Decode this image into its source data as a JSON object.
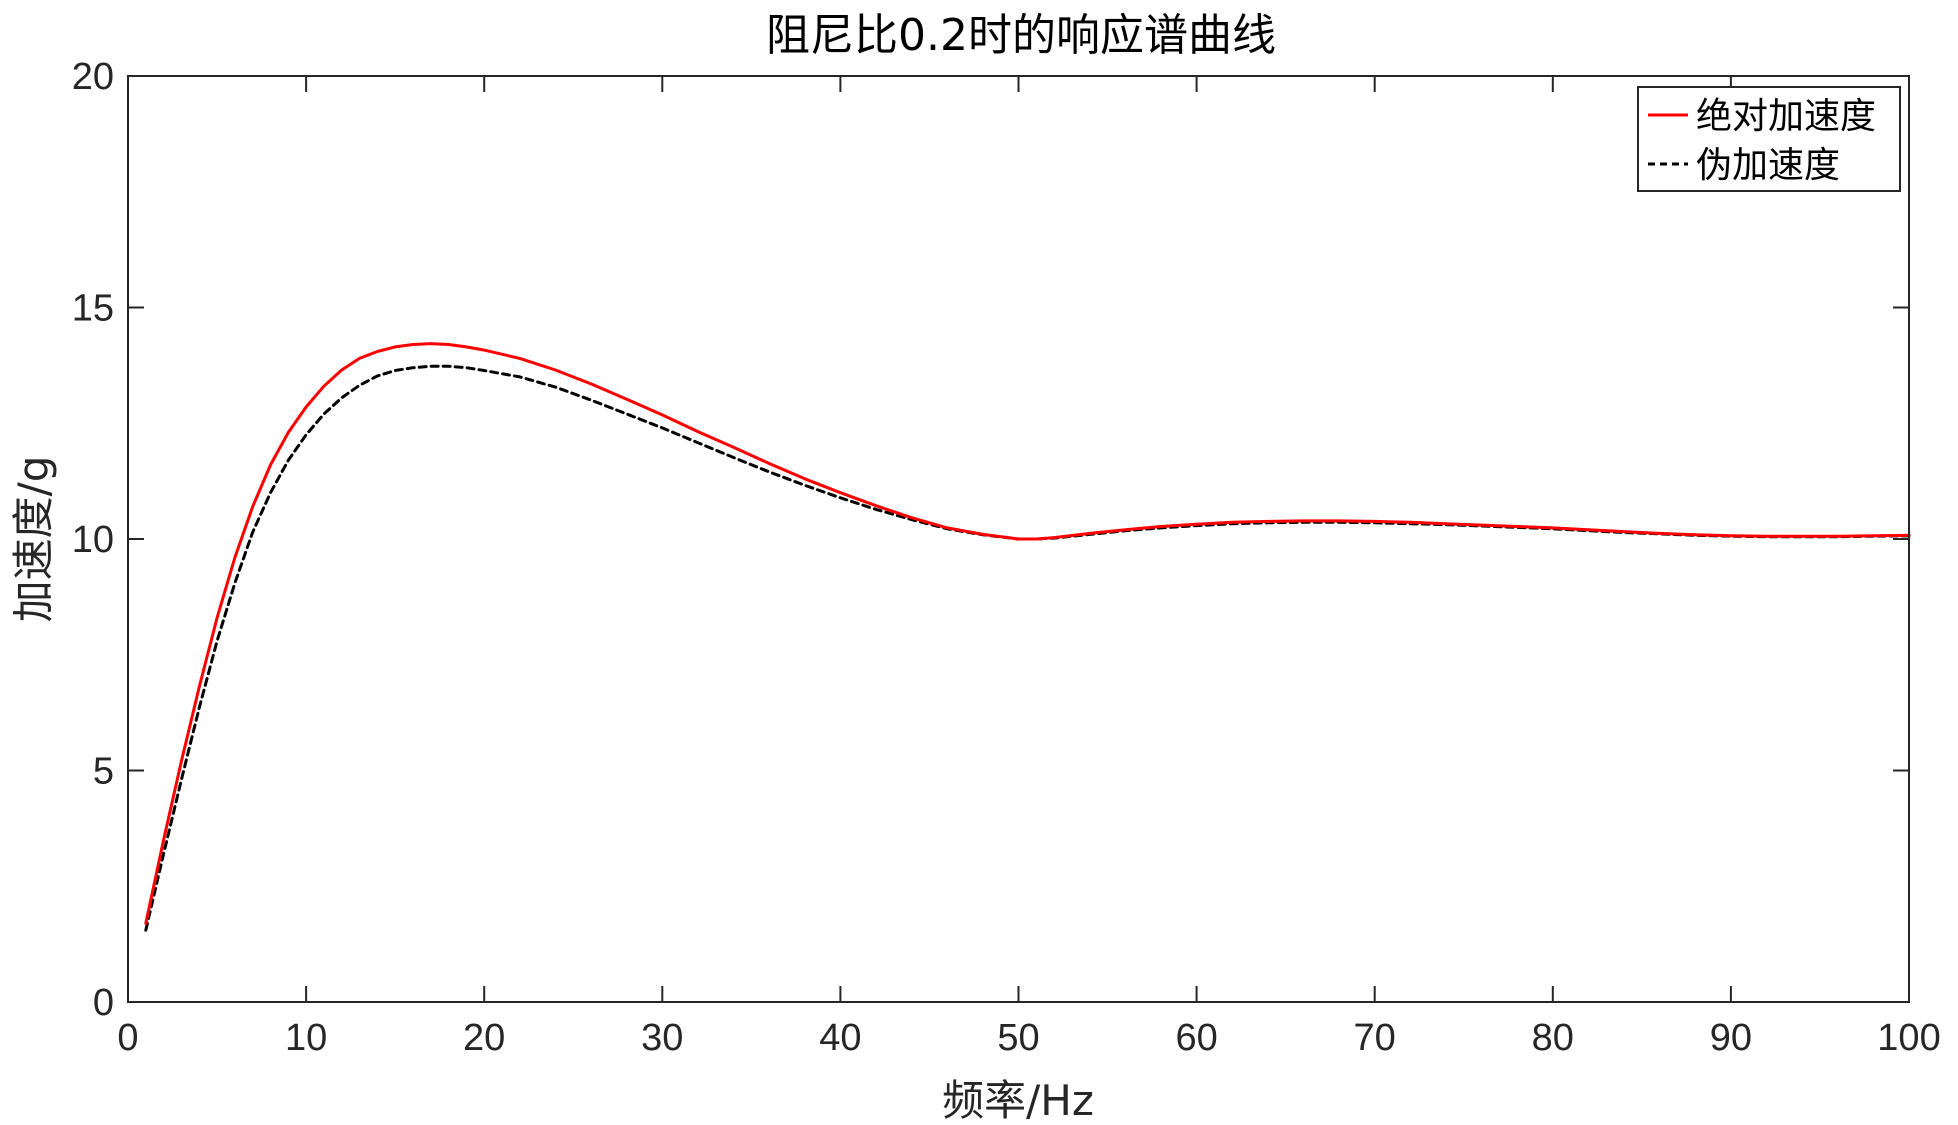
{
  "chart_data": {
    "type": "line",
    "title": "阻尼比0.2时的响应谱曲线",
    "xlabel": "频率/Hz",
    "ylabel": "加速度/g",
    "xlim": [
      0,
      100
    ],
    "ylim": [
      0,
      20
    ],
    "xticks": [
      0,
      10,
      20,
      30,
      40,
      50,
      60,
      70,
      80,
      90,
      100
    ],
    "yticks": [
      0,
      5,
      10,
      15,
      20
    ],
    "grid": false,
    "legend_position": "top-right",
    "series": [
      {
        "name": "绝对加速度",
        "color": "#ff0000",
        "style": "solid",
        "x": [
          1,
          2,
          3,
          4,
          5,
          6,
          7,
          8,
          9,
          10,
          11,
          12,
          13,
          14,
          15,
          16,
          17,
          18,
          19,
          20,
          22,
          24,
          26,
          28,
          30,
          32,
          34,
          36,
          38,
          40,
          42,
          44,
          46,
          48,
          50,
          51,
          52,
          54,
          56,
          58,
          60,
          62,
          64,
          66,
          68,
          70,
          72,
          74,
          76,
          78,
          80,
          82,
          84,
          86,
          88,
          90,
          92,
          94,
          96,
          98,
          100
        ],
        "y": [
          1.7,
          3.5,
          5.2,
          6.8,
          8.3,
          9.6,
          10.7,
          11.6,
          12.3,
          12.85,
          13.3,
          13.65,
          13.9,
          14.05,
          14.15,
          14.2,
          14.22,
          14.2,
          14.15,
          14.08,
          13.9,
          13.65,
          13.35,
          13.02,
          12.68,
          12.32,
          11.98,
          11.63,
          11.3,
          11.0,
          10.72,
          10.46,
          10.24,
          10.1,
          10.0,
          10.0,
          10.03,
          10.12,
          10.2,
          10.27,
          10.32,
          10.36,
          10.38,
          10.39,
          10.39,
          10.38,
          10.36,
          10.33,
          10.3,
          10.27,
          10.24,
          10.2,
          10.16,
          10.12,
          10.09,
          10.07,
          10.06,
          10.06,
          10.06,
          10.07,
          10.08
        ]
      },
      {
        "name": "伪加速度",
        "color": "#000000",
        "style": "dashed",
        "x": [
          1,
          2,
          3,
          4,
          5,
          6,
          7,
          8,
          9,
          10,
          11,
          12,
          13,
          14,
          15,
          16,
          17,
          18,
          19,
          20,
          22,
          24,
          26,
          28,
          30,
          32,
          34,
          36,
          38,
          40,
          42,
          44,
          46,
          48,
          50,
          51,
          52,
          54,
          56,
          58,
          60,
          62,
          64,
          66,
          68,
          70,
          72,
          74,
          76,
          78,
          80,
          82,
          84,
          86,
          88,
          90,
          92,
          94,
          96,
          98,
          100
        ],
        "y": [
          1.55,
          3.2,
          4.8,
          6.35,
          7.8,
          9.05,
          10.15,
          11.0,
          11.7,
          12.25,
          12.7,
          13.05,
          13.32,
          13.52,
          13.64,
          13.7,
          13.73,
          13.73,
          13.7,
          13.64,
          13.5,
          13.28,
          13.0,
          12.7,
          12.4,
          12.08,
          11.76,
          11.45,
          11.16,
          10.89,
          10.64,
          10.42,
          10.22,
          10.09,
          10.0,
          10.0,
          10.02,
          10.1,
          10.18,
          10.24,
          10.29,
          10.33,
          10.35,
          10.36,
          10.36,
          10.35,
          10.33,
          10.31,
          10.28,
          10.25,
          10.22,
          10.18,
          10.14,
          10.11,
          10.08,
          10.06,
          10.05,
          10.05,
          10.05,
          10.06,
          10.07
        ]
      }
    ]
  }
}
